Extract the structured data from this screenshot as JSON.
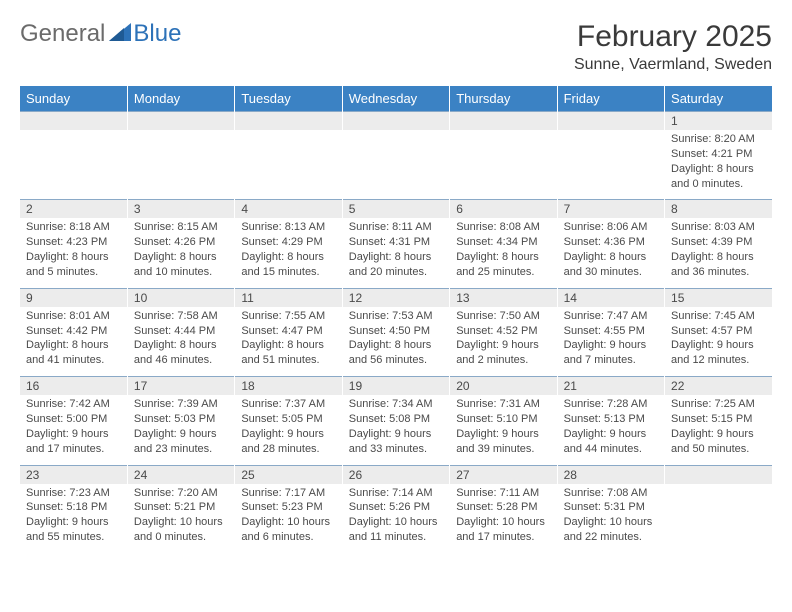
{
  "logo": {
    "text_gray": "General",
    "text_blue": "Blue"
  },
  "title": "February 2025",
  "location": "Sunne, Vaermland, Sweden",
  "colors": {
    "header_bg": "#3b82c4",
    "header_text": "#ffffff",
    "daynum_bg": "#ececec",
    "border": "#8aa9c7",
    "body_text": "#4a4a4a",
    "logo_gray": "#6b6b6b",
    "logo_blue": "#2d72b8"
  },
  "weekdays": [
    "Sunday",
    "Monday",
    "Tuesday",
    "Wednesday",
    "Thursday",
    "Friday",
    "Saturday"
  ],
  "weeks": [
    [
      null,
      null,
      null,
      null,
      null,
      null,
      {
        "d": "1",
        "sr": "Sunrise: 8:20 AM",
        "ss": "Sunset: 4:21 PM",
        "dl1": "Daylight: 8 hours",
        "dl2": "and 0 minutes."
      }
    ],
    [
      {
        "d": "2",
        "sr": "Sunrise: 8:18 AM",
        "ss": "Sunset: 4:23 PM",
        "dl1": "Daylight: 8 hours",
        "dl2": "and 5 minutes."
      },
      {
        "d": "3",
        "sr": "Sunrise: 8:15 AM",
        "ss": "Sunset: 4:26 PM",
        "dl1": "Daylight: 8 hours",
        "dl2": "and 10 minutes."
      },
      {
        "d": "4",
        "sr": "Sunrise: 8:13 AM",
        "ss": "Sunset: 4:29 PM",
        "dl1": "Daylight: 8 hours",
        "dl2": "and 15 minutes."
      },
      {
        "d": "5",
        "sr": "Sunrise: 8:11 AM",
        "ss": "Sunset: 4:31 PM",
        "dl1": "Daylight: 8 hours",
        "dl2": "and 20 minutes."
      },
      {
        "d": "6",
        "sr": "Sunrise: 8:08 AM",
        "ss": "Sunset: 4:34 PM",
        "dl1": "Daylight: 8 hours",
        "dl2": "and 25 minutes."
      },
      {
        "d": "7",
        "sr": "Sunrise: 8:06 AM",
        "ss": "Sunset: 4:36 PM",
        "dl1": "Daylight: 8 hours",
        "dl2": "and 30 minutes."
      },
      {
        "d": "8",
        "sr": "Sunrise: 8:03 AM",
        "ss": "Sunset: 4:39 PM",
        "dl1": "Daylight: 8 hours",
        "dl2": "and 36 minutes."
      }
    ],
    [
      {
        "d": "9",
        "sr": "Sunrise: 8:01 AM",
        "ss": "Sunset: 4:42 PM",
        "dl1": "Daylight: 8 hours",
        "dl2": "and 41 minutes."
      },
      {
        "d": "10",
        "sr": "Sunrise: 7:58 AM",
        "ss": "Sunset: 4:44 PM",
        "dl1": "Daylight: 8 hours",
        "dl2": "and 46 minutes."
      },
      {
        "d": "11",
        "sr": "Sunrise: 7:55 AM",
        "ss": "Sunset: 4:47 PM",
        "dl1": "Daylight: 8 hours",
        "dl2": "and 51 minutes."
      },
      {
        "d": "12",
        "sr": "Sunrise: 7:53 AM",
        "ss": "Sunset: 4:50 PM",
        "dl1": "Daylight: 8 hours",
        "dl2": "and 56 minutes."
      },
      {
        "d": "13",
        "sr": "Sunrise: 7:50 AM",
        "ss": "Sunset: 4:52 PM",
        "dl1": "Daylight: 9 hours",
        "dl2": "and 2 minutes."
      },
      {
        "d": "14",
        "sr": "Sunrise: 7:47 AM",
        "ss": "Sunset: 4:55 PM",
        "dl1": "Daylight: 9 hours",
        "dl2": "and 7 minutes."
      },
      {
        "d": "15",
        "sr": "Sunrise: 7:45 AM",
        "ss": "Sunset: 4:57 PM",
        "dl1": "Daylight: 9 hours",
        "dl2": "and 12 minutes."
      }
    ],
    [
      {
        "d": "16",
        "sr": "Sunrise: 7:42 AM",
        "ss": "Sunset: 5:00 PM",
        "dl1": "Daylight: 9 hours",
        "dl2": "and 17 minutes."
      },
      {
        "d": "17",
        "sr": "Sunrise: 7:39 AM",
        "ss": "Sunset: 5:03 PM",
        "dl1": "Daylight: 9 hours",
        "dl2": "and 23 minutes."
      },
      {
        "d": "18",
        "sr": "Sunrise: 7:37 AM",
        "ss": "Sunset: 5:05 PM",
        "dl1": "Daylight: 9 hours",
        "dl2": "and 28 minutes."
      },
      {
        "d": "19",
        "sr": "Sunrise: 7:34 AM",
        "ss": "Sunset: 5:08 PM",
        "dl1": "Daylight: 9 hours",
        "dl2": "and 33 minutes."
      },
      {
        "d": "20",
        "sr": "Sunrise: 7:31 AM",
        "ss": "Sunset: 5:10 PM",
        "dl1": "Daylight: 9 hours",
        "dl2": "and 39 minutes."
      },
      {
        "d": "21",
        "sr": "Sunrise: 7:28 AM",
        "ss": "Sunset: 5:13 PM",
        "dl1": "Daylight: 9 hours",
        "dl2": "and 44 minutes."
      },
      {
        "d": "22",
        "sr": "Sunrise: 7:25 AM",
        "ss": "Sunset: 5:15 PM",
        "dl1": "Daylight: 9 hours",
        "dl2": "and 50 minutes."
      }
    ],
    [
      {
        "d": "23",
        "sr": "Sunrise: 7:23 AM",
        "ss": "Sunset: 5:18 PM",
        "dl1": "Daylight: 9 hours",
        "dl2": "and 55 minutes."
      },
      {
        "d": "24",
        "sr": "Sunrise: 7:20 AM",
        "ss": "Sunset: 5:21 PM",
        "dl1": "Daylight: 10 hours",
        "dl2": "and 0 minutes."
      },
      {
        "d": "25",
        "sr": "Sunrise: 7:17 AM",
        "ss": "Sunset: 5:23 PM",
        "dl1": "Daylight: 10 hours",
        "dl2": "and 6 minutes."
      },
      {
        "d": "26",
        "sr": "Sunrise: 7:14 AM",
        "ss": "Sunset: 5:26 PM",
        "dl1": "Daylight: 10 hours",
        "dl2": "and 11 minutes."
      },
      {
        "d": "27",
        "sr": "Sunrise: 7:11 AM",
        "ss": "Sunset: 5:28 PM",
        "dl1": "Daylight: 10 hours",
        "dl2": "and 17 minutes."
      },
      {
        "d": "28",
        "sr": "Sunrise: 7:08 AM",
        "ss": "Sunset: 5:31 PM",
        "dl1": "Daylight: 10 hours",
        "dl2": "and 22 minutes."
      },
      null
    ]
  ]
}
